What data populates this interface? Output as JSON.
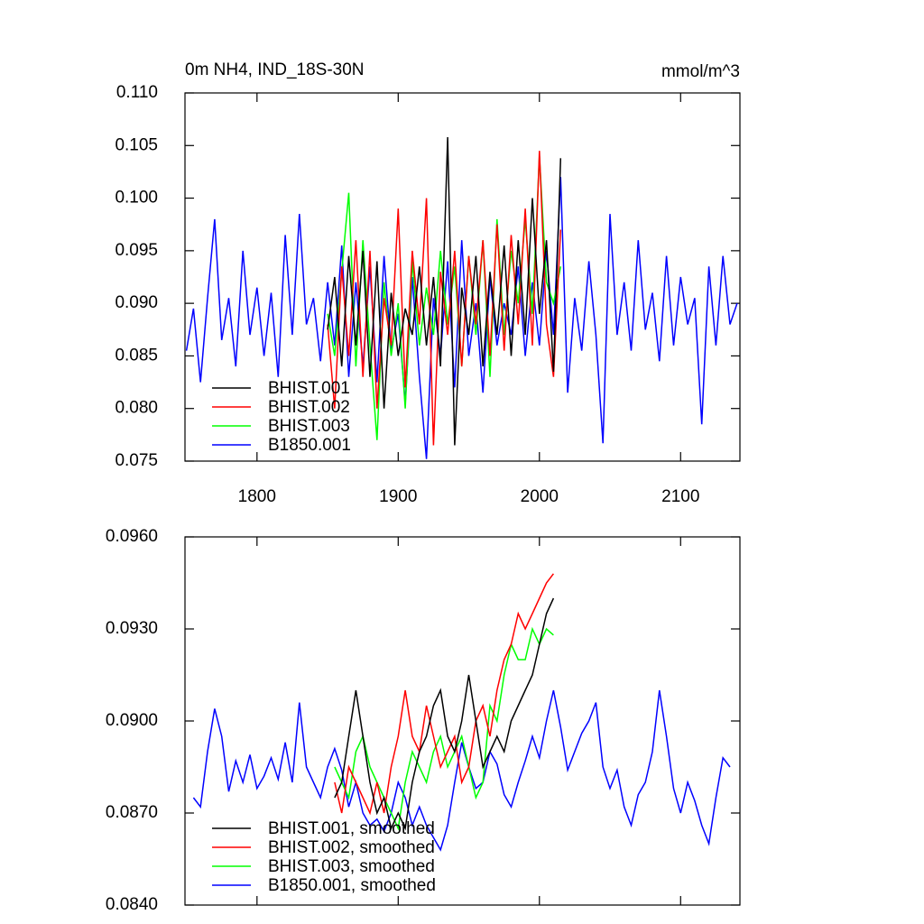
{
  "chart_data": [
    {
      "type": "line",
      "title": "0m NH4, IND_18S-30N",
      "subtitle": "mmol/m^3",
      "xlim": [
        1749,
        2142
      ],
      "xticks": [
        1800,
        1900,
        2000,
        2100
      ],
      "xticklabels": true,
      "ylim": [
        0.075,
        0.11
      ],
      "yticks": [
        0.075,
        {
          "value": 0.08,
          "label": "0.080"
        },
        0.085,
        {
          "value": 0.09,
          "label": "0.090"
        },
        0.095,
        {
          "value": 0.1,
          "label": "0.100"
        },
        0.105,
        {
          "value": 0.11,
          "label": "0.110"
        }
      ],
      "legend": "lower left",
      "series": [
        {
          "name": "BHIST.001",
          "color": "#000000",
          "x": [
            1850,
            1855,
            1860,
            1865,
            1870,
            1875,
            1880,
            1885,
            1890,
            1895,
            1900,
            1905,
            1910,
            1915,
            1920,
            1925,
            1930,
            1935,
            1940,
            1945,
            1950,
            1955,
            1960,
            1965,
            1970,
            1975,
            1980,
            1985,
            1990,
            1995,
            2000,
            2005,
            2010,
            2015
          ],
          "values": [
            0.0875,
            0.0925,
            0.084,
            0.0945,
            0.086,
            0.095,
            0.083,
            0.094,
            0.08,
            0.091,
            0.085,
            0.0895,
            0.087,
            0.0935,
            0.086,
            0.0925,
            0.084,
            0.1058,
            0.0765,
            0.0915,
            0.087,
            0.0945,
            0.084,
            0.093,
            0.087,
            0.0955,
            0.085,
            0.096,
            0.087,
            0.1,
            0.089,
            0.096,
            0.0835,
            0.1038
          ]
        },
        {
          "name": "BHIST.002",
          "color": "#ff0000",
          "x": [
            1850,
            1855,
            1860,
            1865,
            1870,
            1875,
            1880,
            1885,
            1890,
            1895,
            1900,
            1905,
            1910,
            1915,
            1920,
            1925,
            1930,
            1935,
            1940,
            1945,
            1950,
            1955,
            1960,
            1965,
            1970,
            1975,
            1980,
            1985,
            1990,
            1995,
            2000,
            2005,
            2010,
            2015
          ],
          "values": [
            0.088,
            0.08,
            0.0935,
            0.085,
            0.096,
            0.083,
            0.095,
            0.08,
            0.0905,
            0.086,
            0.099,
            0.082,
            0.095,
            0.088,
            0.1,
            0.0765,
            0.093,
            0.087,
            0.095,
            0.084,
            0.0945,
            0.088,
            0.096,
            0.085,
            0.0975,
            0.0855,
            0.0965,
            0.088,
            0.099,
            0.086,
            0.1045,
            0.088,
            0.083,
            0.097
          ]
        },
        {
          "name": "BHIST.003",
          "color": "#00ff00",
          "x": [
            1850,
            1855,
            1860,
            1865,
            1870,
            1875,
            1880,
            1885,
            1890,
            1895,
            1900,
            1905,
            1910,
            1915,
            1920,
            1925,
            1930,
            1935,
            1940,
            1945,
            1950,
            1955,
            1960,
            1965,
            1970,
            1975,
            1980,
            1985,
            1990,
            1995,
            2000,
            2005,
            2010,
            2015
          ],
          "values": [
            0.089,
            0.085,
            0.093,
            0.1005,
            0.084,
            0.096,
            0.086,
            0.077,
            0.092,
            0.085,
            0.09,
            0.08,
            0.094,
            0.086,
            0.0915,
            0.087,
            0.095,
            0.088,
            0.0935,
            0.084,
            0.0945,
            0.087,
            0.096,
            0.083,
            0.098,
            0.087,
            0.095,
            0.09,
            0.098,
            0.089,
            0.104,
            0.092,
            0.09,
            0.0935
          ]
        },
        {
          "name": "B1850.001",
          "color": "#0000ff",
          "x": [
            1750,
            1755,
            1760,
            1765,
            1770,
            1775,
            1780,
            1785,
            1790,
            1795,
            1800,
            1805,
            1810,
            1815,
            1820,
            1825,
            1830,
            1835,
            1840,
            1845,
            1850,
            1855,
            1860,
            1865,
            1870,
            1875,
            1880,
            1885,
            1890,
            1895,
            1900,
            1905,
            1910,
            1915,
            1920,
            1925,
            1930,
            1935,
            1940,
            1945,
            1950,
            1955,
            1960,
            1965,
            1970,
            1975,
            1980,
            1985,
            1990,
            1995,
            2000,
            2005,
            2010,
            2015,
            2020,
            2025,
            2030,
            2035,
            2040,
            2045,
            2050,
            2055,
            2060,
            2065,
            2070,
            2075,
            2080,
            2085,
            2090,
            2095,
            2100,
            2105,
            2110,
            2115,
            2120,
            2125,
            2130,
            2135,
            2140
          ],
          "values": [
            0.0855,
            0.0895,
            0.0825,
            0.0905,
            0.098,
            0.0865,
            0.0905,
            0.084,
            0.095,
            0.087,
            0.0915,
            0.085,
            0.091,
            0.083,
            0.0965,
            0.087,
            0.0985,
            0.088,
            0.0905,
            0.0845,
            0.092,
            0.086,
            0.0955,
            0.083,
            0.092,
            0.084,
            0.0935,
            0.0825,
            0.0945,
            0.0855,
            0.089,
            0.0805,
            0.0925,
            0.083,
            0.0752,
            0.0905,
            0.085,
            0.094,
            0.082,
            0.096,
            0.085,
            0.09,
            0.0815,
            0.0925,
            0.086,
            0.09,
            0.087,
            0.0935,
            0.085,
            0.092,
            0.086,
            0.095,
            0.087,
            0.102,
            0.0815,
            0.0905,
            0.0855,
            0.094,
            0.087,
            0.0767,
            0.0985,
            0.087,
            0.092,
            0.0855,
            0.096,
            0.0875,
            0.091,
            0.0845,
            0.0945,
            0.086,
            0.0925,
            0.088,
            0.0905,
            0.0785,
            0.0935,
            0.086,
            0.0945,
            0.088,
            0.09
          ]
        }
      ]
    },
    {
      "type": "line",
      "xlim": [
        1749,
        2142
      ],
      "xticks": [
        1800,
        1900,
        2000,
        2100
      ],
      "xticklabels": false,
      "ylim": [
        0.084,
        0.096
      ],
      "yticks": [
        {
          "value": 0.084,
          "label": "0.0840"
        },
        {
          "value": 0.087,
          "label": "0.0870"
        },
        {
          "value": 0.09,
          "label": "0.0900"
        },
        {
          "value": 0.093,
          "label": "0.0930"
        },
        {
          "value": 0.096,
          "label": "0.0960"
        }
      ],
      "legend": "lower left",
      "series": [
        {
          "name": "BHIST.001, smoothed",
          "color": "#000000",
          "x": [
            1855,
            1860,
            1865,
            1870,
            1875,
            1880,
            1885,
            1890,
            1895,
            1900,
            1905,
            1910,
            1915,
            1920,
            1925,
            1930,
            1935,
            1940,
            1945,
            1950,
            1955,
            1960,
            1965,
            1970,
            1975,
            1980,
            1985,
            1990,
            1995,
            2000,
            2005,
            2010
          ],
          "values": [
            0.0875,
            0.088,
            0.0895,
            0.091,
            0.0895,
            0.088,
            0.087,
            0.0875,
            0.0865,
            0.087,
            0.0865,
            0.088,
            0.089,
            0.0895,
            0.0905,
            0.091,
            0.0895,
            0.089,
            0.09,
            0.0915,
            0.09,
            0.0885,
            0.089,
            0.0895,
            0.089,
            0.09,
            0.0905,
            0.091,
            0.0915,
            0.0925,
            0.0935,
            0.094
          ]
        },
        {
          "name": "BHIST.002, smoothed",
          "color": "#ff0000",
          "x": [
            1855,
            1860,
            1865,
            1870,
            1875,
            1880,
            1885,
            1890,
            1895,
            1900,
            1905,
            1910,
            1915,
            1920,
            1925,
            1930,
            1935,
            1940,
            1945,
            1950,
            1955,
            1960,
            1965,
            1970,
            1975,
            1980,
            1985,
            1990,
            1995,
            2000,
            2005,
            2010
          ],
          "values": [
            0.088,
            0.087,
            0.0885,
            0.088,
            0.0875,
            0.087,
            0.088,
            0.087,
            0.0885,
            0.0895,
            0.091,
            0.0895,
            0.089,
            0.0905,
            0.0895,
            0.0885,
            0.089,
            0.0895,
            0.088,
            0.0885,
            0.09,
            0.0905,
            0.0895,
            0.091,
            0.092,
            0.0925,
            0.0935,
            0.093,
            0.0935,
            0.094,
            0.0945,
            0.0948
          ]
        },
        {
          "name": "BHIST.003, smoothed",
          "color": "#00ff00",
          "x": [
            1855,
            1860,
            1865,
            1870,
            1875,
            1880,
            1885,
            1890,
            1895,
            1900,
            1905,
            1910,
            1915,
            1920,
            1925,
            1930,
            1935,
            1940,
            1945,
            1950,
            1955,
            1960,
            1965,
            1970,
            1975,
            1980,
            1985,
            1990,
            1995,
            2000,
            2005,
            2010
          ],
          "values": [
            0.0885,
            0.088,
            0.0875,
            0.089,
            0.0895,
            0.0885,
            0.088,
            0.0875,
            0.087,
            0.0865,
            0.088,
            0.089,
            0.0885,
            0.088,
            0.089,
            0.0895,
            0.0885,
            0.089,
            0.0895,
            0.0885,
            0.0875,
            0.088,
            0.0905,
            0.09,
            0.0915,
            0.0925,
            0.092,
            0.092,
            0.093,
            0.0925,
            0.093,
            0.0928
          ]
        },
        {
          "name": "B1850.001, smoothed",
          "color": "#0000ff",
          "x": [
            1755,
            1760,
            1765,
            1770,
            1775,
            1780,
            1785,
            1790,
            1795,
            1800,
            1805,
            1810,
            1815,
            1820,
            1825,
            1830,
            1835,
            1840,
            1845,
            1850,
            1855,
            1860,
            1865,
            1870,
            1875,
            1880,
            1885,
            1890,
            1895,
            1900,
            1905,
            1910,
            1915,
            1920,
            1925,
            1930,
            1935,
            1940,
            1945,
            1950,
            1955,
            1960,
            1965,
            1970,
            1975,
            1980,
            1985,
            1990,
            1995,
            2000,
            2005,
            2010,
            2015,
            2020,
            2025,
            2030,
            2035,
            2040,
            2045,
            2050,
            2055,
            2060,
            2065,
            2070,
            2075,
            2080,
            2085,
            2090,
            2095,
            2100,
            2105,
            2110,
            2115,
            2120,
            2125,
            2130,
            2135
          ],
          "values": [
            0.0875,
            0.0872,
            0.089,
            0.0904,
            0.0895,
            0.0877,
            0.0887,
            0.088,
            0.0889,
            0.0878,
            0.0882,
            0.0888,
            0.0881,
            0.0893,
            0.088,
            0.0906,
            0.0885,
            0.088,
            0.0875,
            0.0885,
            0.0891,
            0.0884,
            0.0872,
            0.088,
            0.087,
            0.0866,
            0.0868,
            0.0864,
            0.087,
            0.088,
            0.0875,
            0.0866,
            0.0872,
            0.0866,
            0.0862,
            0.0858,
            0.0866,
            0.088,
            0.0893,
            0.0885,
            0.0878,
            0.088,
            0.089,
            0.0886,
            0.0876,
            0.0872,
            0.088,
            0.0887,
            0.0895,
            0.0888,
            0.09,
            0.091,
            0.0898,
            0.0884,
            0.089,
            0.0896,
            0.09,
            0.0906,
            0.0885,
            0.0878,
            0.0884,
            0.0872,
            0.0866,
            0.0876,
            0.088,
            0.089,
            0.091,
            0.0895,
            0.0878,
            0.087,
            0.088,
            0.0874,
            0.0866,
            0.086,
            0.0875,
            0.0888,
            0.0885
          ]
        }
      ]
    }
  ]
}
